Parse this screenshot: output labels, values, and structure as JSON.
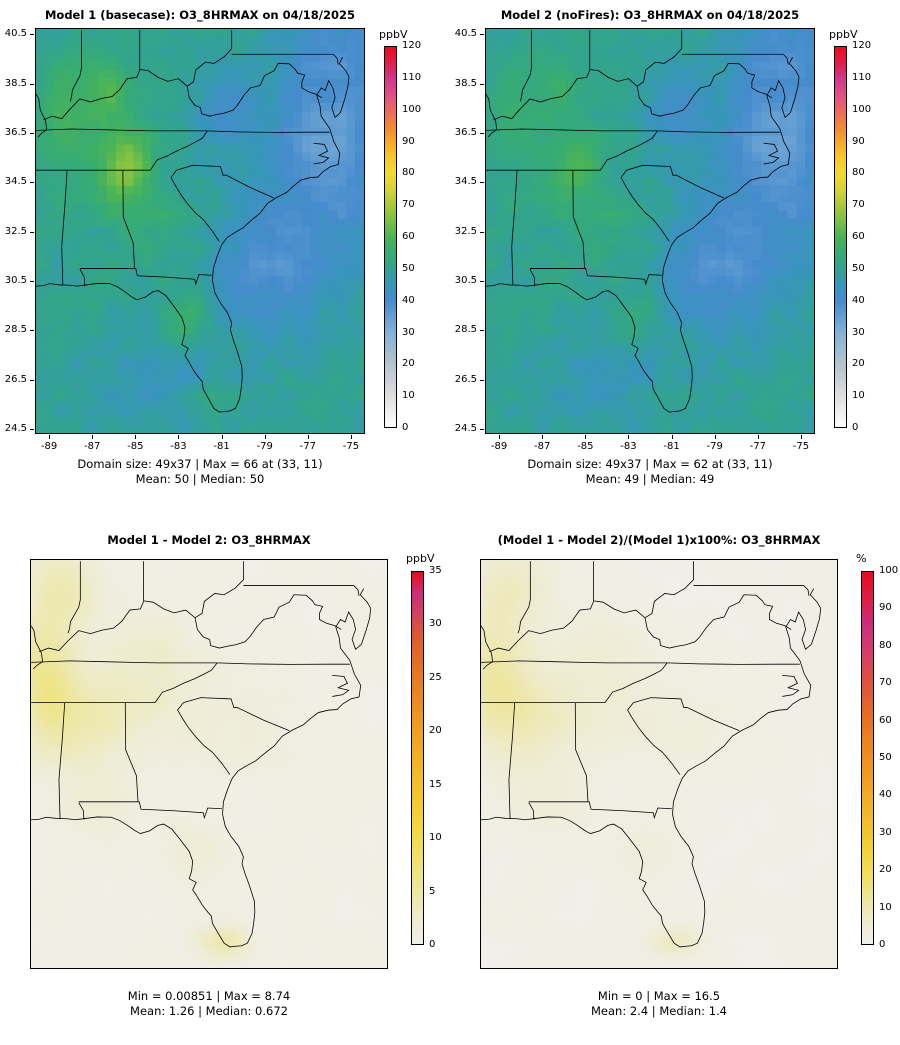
{
  "panels": [
    {
      "name": "model1-basecase",
      "title": "Model 1 (basecase): O3_8HRMAX on 04/18/2025",
      "colorbar_label": "ppbV",
      "colorbar_ticks": [
        "0",
        "10",
        "20",
        "30",
        "40",
        "50",
        "60",
        "70",
        "80",
        "90",
        "100",
        "110",
        "120"
      ],
      "x_tick_labels": [
        "-89",
        "-87",
        "-85",
        "-83",
        "-81",
        "-79",
        "-77",
        "-75"
      ],
      "y_tick_labels": [
        "24.5",
        "26.5",
        "28.5",
        "30.5",
        "32.5",
        "34.5",
        "36.5",
        "38.5",
        "40.5"
      ],
      "stats_line1": "Domain size: 49x37 | Max = 66 at (33, 11)",
      "stats_line2": "Mean: 50 |  Median: 50"
    },
    {
      "name": "model2-nofires",
      "title": "Model 2 (noFires): O3_8HRMAX on 04/18/2025",
      "colorbar_label": "ppbV",
      "colorbar_ticks": [
        "0",
        "10",
        "20",
        "30",
        "40",
        "50",
        "60",
        "70",
        "80",
        "90",
        "100",
        "110",
        "120"
      ],
      "x_tick_labels": [
        "-89",
        "-87",
        "-85",
        "-83",
        "-81",
        "-79",
        "-77",
        "-75"
      ],
      "y_tick_labels": [
        "24.5",
        "26.5",
        "28.5",
        "30.5",
        "32.5",
        "34.5",
        "36.5",
        "38.5",
        "40.5"
      ],
      "stats_line1": "Domain size: 49x37 | Max = 62 at (33, 11)",
      "stats_line2": "Mean: 49 |  Median: 49"
    },
    {
      "name": "model-difference",
      "title": "Model 1 - Model 2: O3_8HRMAX",
      "colorbar_label": "ppbV",
      "colorbar_ticks": [
        "0",
        "5",
        "10",
        "15",
        "20",
        "25",
        "30",
        "35"
      ],
      "stats_line1": "Min = 0.00851 | Max = 8.74",
      "stats_line2": "Mean: 1.26 |  Median: 0.672"
    },
    {
      "name": "percent-difference",
      "title": "(Model 1 - Model 2)/(Model 1)x100%: O3_8HRMAX",
      "colorbar_label": "%",
      "colorbar_ticks": [
        "0",
        "10",
        "20",
        "30",
        "40",
        "50",
        "60",
        "70",
        "80",
        "90",
        "100"
      ],
      "stats_line1": "Min = 0 | Max = 16.5",
      "stats_line2": "Mean: 2.4 |  Median: 1.4"
    }
  ],
  "chart_data": [
    {
      "type": "heatmap",
      "panel": "top-left",
      "title": "Model 1 (basecase): O3_8HRMAX on 04/18/2025",
      "variable": "O3_8HRMAX",
      "date": "04/18/2025",
      "units": "ppbV",
      "domain_size": "49x37",
      "stats": {
        "max": 66,
        "max_at": "(33, 11)",
        "mean": 50,
        "median": 50
      },
      "x_ticks": [
        -89,
        -87,
        -85,
        -83,
        -81,
        -79,
        -77,
        -75
      ],
      "y_ticks": [
        24.5,
        26.5,
        28.5,
        30.5,
        32.5,
        34.5,
        36.5,
        38.5,
        40.5
      ],
      "colorbar": {
        "range": [
          0,
          120
        ],
        "ticks": [
          0,
          10,
          20,
          30,
          40,
          50,
          60,
          70,
          80,
          90,
          100,
          110,
          120
        ],
        "units": "ppbV"
      }
    },
    {
      "type": "heatmap",
      "panel": "top-right",
      "title": "Model 2 (noFires): O3_8HRMAX on 04/18/2025",
      "variable": "O3_8HRMAX",
      "date": "04/18/2025",
      "units": "ppbV",
      "domain_size": "49x37",
      "stats": {
        "max": 62,
        "max_at": "(33, 11)",
        "mean": 49,
        "median": 49
      },
      "x_ticks": [
        -89,
        -87,
        -85,
        -83,
        -81,
        -79,
        -77,
        -75
      ],
      "y_ticks": [
        24.5,
        26.5,
        28.5,
        30.5,
        32.5,
        34.5,
        36.5,
        38.5,
        40.5
      ],
      "colorbar": {
        "range": [
          0,
          120
        ],
        "ticks": [
          0,
          10,
          20,
          30,
          40,
          50,
          60,
          70,
          80,
          90,
          100,
          110,
          120
        ],
        "units": "ppbV"
      }
    },
    {
      "type": "heatmap",
      "panel": "bottom-left",
      "title": "Model 1 - Model 2: O3_8HRMAX",
      "variable": "O3_8HRMAX",
      "units": "ppbV",
      "stats": {
        "min": 0.00851,
        "max": 8.74,
        "mean": 1.26,
        "median": 0.672
      },
      "colorbar": {
        "range": [
          0,
          35
        ],
        "ticks": [
          0,
          5,
          10,
          15,
          20,
          25,
          30,
          35
        ],
        "units": "ppbV"
      }
    },
    {
      "type": "heatmap",
      "panel": "bottom-right",
      "title": "(Model 1 - Model 2)/(Model 1)x100%: O3_8HRMAX",
      "variable": "O3_8HRMAX",
      "units": "%",
      "stats": {
        "min": 0,
        "max": 16.5,
        "mean": 2.4,
        "median": 1.4
      },
      "colorbar": {
        "range": [
          0,
          100
        ],
        "ticks": [
          0,
          10,
          20,
          30,
          40,
          50,
          60,
          70,
          80,
          90,
          100
        ],
        "units": "%"
      }
    }
  ]
}
